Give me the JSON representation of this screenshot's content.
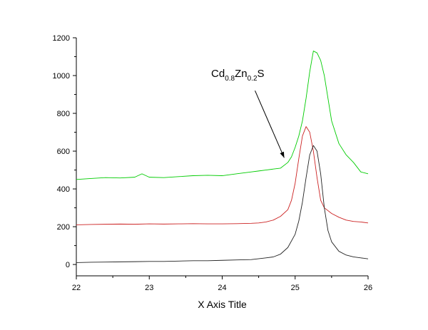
{
  "chart_data": {
    "type": "line",
    "title": "",
    "xlabel": "X Axis Title",
    "ylabel": "",
    "xlim": [
      22,
      26
    ],
    "ylim": [
      -60,
      1200
    ],
    "x_ticks": [
      22,
      23,
      24,
      25,
      26
    ],
    "y_ticks": [
      0,
      200,
      400,
      600,
      800,
      1000,
      1200
    ],
    "grid": false,
    "legend": "none",
    "annotation": {
      "base": "Cd",
      "sub1": "0.8",
      "mid": "Zn",
      "sub2": "0.2",
      "end": "S",
      "arrow_from": [
        24.45,
        920
      ],
      "arrow_to": [
        24.85,
        565
      ]
    },
    "series": [
      {
        "color": "#00cc00",
        "x": [
          22.0,
          22.2,
          22.4,
          22.6,
          22.8,
          22.9,
          23.0,
          23.2,
          23.4,
          23.6,
          23.8,
          24.0,
          24.2,
          24.4,
          24.5,
          24.6,
          24.7,
          24.8,
          24.9,
          24.95,
          25.0,
          25.05,
          25.1,
          25.15,
          25.2,
          25.25,
          25.3,
          25.35,
          25.4,
          25.45,
          25.5,
          25.6,
          25.7,
          25.8,
          25.9,
          26.0
        ],
        "y": [
          450,
          455,
          460,
          458,
          462,
          480,
          462,
          460,
          465,
          470,
          472,
          470,
          480,
          490,
          495,
          500,
          505,
          510,
          540,
          570,
          620,
          680,
          760,
          880,
          1020,
          1130,
          1120,
          1080,
          1000,
          880,
          760,
          640,
          580,
          540,
          490,
          480
        ]
      },
      {
        "color": "#cc2222",
        "x": [
          22.0,
          22.2,
          22.4,
          22.6,
          22.8,
          23.0,
          23.2,
          23.4,
          23.6,
          23.8,
          24.0,
          24.2,
          24.4,
          24.5,
          24.6,
          24.7,
          24.8,
          24.9,
          24.95,
          25.0,
          25.05,
          25.1,
          25.15,
          25.2,
          25.25,
          25.3,
          25.35,
          25.4,
          25.5,
          25.6,
          25.7,
          25.8,
          25.9,
          26.0
        ],
        "y": [
          210,
          212,
          213,
          214,
          213,
          215,
          214,
          215,
          216,
          215,
          215,
          216,
          218,
          220,
          225,
          235,
          255,
          290,
          340,
          430,
          560,
          680,
          730,
          700,
          600,
          460,
          340,
          300,
          270,
          250,
          235,
          228,
          225,
          220
        ]
      },
      {
        "color": "#222222",
        "x": [
          22.0,
          22.2,
          22.4,
          22.6,
          22.8,
          23.0,
          23.2,
          23.4,
          23.6,
          23.8,
          24.0,
          24.2,
          24.4,
          24.6,
          24.7,
          24.8,
          24.9,
          25.0,
          25.05,
          25.1,
          25.15,
          25.2,
          25.25,
          25.3,
          25.35,
          25.4,
          25.45,
          25.5,
          25.6,
          25.7,
          25.8,
          25.9,
          26.0
        ],
        "y": [
          10,
          12,
          13,
          14,
          15,
          16,
          16,
          18,
          20,
          20,
          22,
          24,
          26,
          35,
          40,
          55,
          90,
          160,
          230,
          330,
          460,
          580,
          630,
          600,
          480,
          300,
          180,
          120,
          70,
          50,
          40,
          35,
          30
        ]
      }
    ]
  }
}
